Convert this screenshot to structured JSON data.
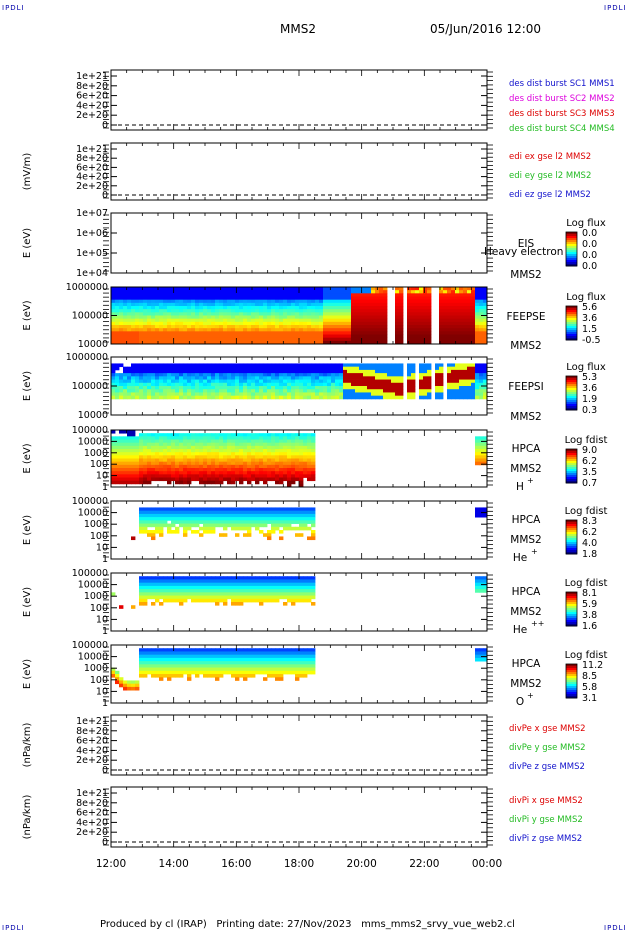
{
  "header": {
    "corner_labels": [
      "IPDLI",
      "IPDLI",
      "IPDLI",
      "IPDLI"
    ],
    "spacecraft": "MMS2",
    "datetime": "05/Jun/2016 12:00"
  },
  "footer": {
    "produced_by": "Produced by cl (IRAP)",
    "printing_date": "Printing date: 27/Nov/2023",
    "filename": "mms_mms2_srvy_vue_web2.cl"
  },
  "time_axis": {
    "ticks": [
      "12:00",
      "14:00",
      "16:00",
      "18:00",
      "20:00",
      "22:00",
      "00:00"
    ],
    "range_hours": [
      12,
      24
    ]
  },
  "colors": {
    "red": "#dd0000",
    "green": "#22bb22",
    "blue": "#1111cc",
    "magenta": "#dd00dd",
    "black": "#000000"
  },
  "chart_data": [
    {
      "type": "line",
      "id": "dist",
      "ylabel": "",
      "y_ticks": [
        "1e+21",
        "8e+20",
        "6e+20",
        "4e+20",
        "2e+20",
        "0"
      ],
      "legend": [
        {
          "text": "des dist burst SC1 MMS1",
          "color": "#1111cc"
        },
        {
          "text": "des dist burst SC2 MMS2",
          "color": "#dd00dd"
        },
        {
          "text": "des dist burst SC3 MMS3",
          "color": "#dd0000"
        },
        {
          "text": "des dist burst SC4 MMS4",
          "color": "#22bb22"
        }
      ]
    },
    {
      "type": "line",
      "id": "edi",
      "ylabel": "(mV/m)",
      "y_ticks": [
        "1e+21",
        "8e+20",
        "6e+20",
        "4e+20",
        "2e+20",
        "0"
      ],
      "legend": [
        {
          "text": "edi ex gse l2 MMS2",
          "color": "#dd0000"
        },
        {
          "text": "edi ey gse l2 MMS2",
          "color": "#22bb22"
        },
        {
          "text": "edi ez gse l2 MMS2",
          "color": "#1111cc"
        }
      ]
    },
    {
      "type": "heatmap",
      "id": "eis",
      "ylabel": "E (eV)",
      "y_ticks": [
        "1e+07",
        "1e+06",
        "1e+05",
        "1e+04"
      ],
      "instrument": "EIS",
      "spacecraft": "MMS2",
      "extra_text": "Heavy electron tc",
      "colorbar_title": "Log flux",
      "colorbar_ticks": [
        "0.0",
        "0.0",
        "0.0",
        "0.0"
      ]
    },
    {
      "type": "heatmap",
      "id": "feepse",
      "ylabel": "E (eV)",
      "y_ticks": [
        "1000000",
        "100000",
        "10000"
      ],
      "instrument": "FEEPSE",
      "spacecraft": "MMS2",
      "colorbar_title": "Log flux",
      "colorbar_ticks": [
        "5.6",
        "3.6",
        "1.5",
        "-0.5"
      ]
    },
    {
      "type": "heatmap",
      "id": "feepsi",
      "ylabel": "E (eV)",
      "y_ticks": [
        "1000000",
        "100000",
        "10000"
      ],
      "instrument": "FEEPSI",
      "spacecraft": "MMS2",
      "colorbar_title": "Log flux",
      "colorbar_ticks": [
        "5.3",
        "3.6",
        "1.9",
        "0.3"
      ]
    },
    {
      "type": "heatmap",
      "id": "hpca_h",
      "ylabel": "E (eV)",
      "y_ticks": [
        "100000",
        "10000",
        "1000",
        "100",
        "10",
        "1"
      ],
      "instrument": "HPCA",
      "spacecraft": "MMS2",
      "species": "H",
      "charge": "+",
      "colorbar_title": "Log fdist",
      "colorbar_ticks": [
        "9.0",
        "6.2",
        "3.5",
        "0.7"
      ]
    },
    {
      "type": "heatmap",
      "id": "hpca_he1",
      "ylabel": "E (eV)",
      "y_ticks": [
        "100000",
        "10000",
        "1000",
        "100",
        "10",
        "1"
      ],
      "instrument": "HPCA",
      "spacecraft": "MMS2",
      "species": "He",
      "charge": "+",
      "colorbar_title": "Log fdist",
      "colorbar_ticks": [
        "8.3",
        "6.2",
        "4.0",
        "1.8"
      ]
    },
    {
      "type": "heatmap",
      "id": "hpca_he2",
      "ylabel": "E (eV)",
      "y_ticks": [
        "100000",
        "10000",
        "1000",
        "100",
        "10",
        "1"
      ],
      "instrument": "HPCA",
      "spacecraft": "MMS2",
      "species": "He",
      "charge": "++",
      "colorbar_title": "Log fdist",
      "colorbar_ticks": [
        "8.1",
        "5.9",
        "3.8",
        "1.6"
      ]
    },
    {
      "type": "heatmap",
      "id": "hpca_o",
      "ylabel": "E (eV)",
      "y_ticks": [
        "100000",
        "10000",
        "1000",
        "100",
        "10",
        "1"
      ],
      "instrument": "HPCA",
      "spacecraft": "MMS2",
      "species": "O",
      "charge": "+",
      "colorbar_title": "Log fdist",
      "colorbar_ticks": [
        "11.2",
        "8.5",
        "5.8",
        "3.1"
      ]
    },
    {
      "type": "line",
      "id": "divpe",
      "ylabel": "(nPa/km)",
      "y_ticks": [
        "1e+21",
        "8e+20",
        "6e+20",
        "4e+20",
        "2e+20",
        "0"
      ],
      "legend": [
        {
          "text": "divPe x gse MMS2",
          "color": "#dd0000"
        },
        {
          "text": "divPe y gse MMS2",
          "color": "#22bb22"
        },
        {
          "text": "divPe z gse MMS2",
          "color": "#1111cc"
        }
      ]
    },
    {
      "type": "line",
      "id": "divpi",
      "ylabel": "(nPa/km)",
      "y_ticks": [
        "1e+21",
        "8e+20",
        "6e+20",
        "4e+20",
        "2e+20",
        "0"
      ],
      "legend": [
        {
          "text": "divPi x gse MMS2",
          "color": "#dd0000"
        },
        {
          "text": "divPi y gse MMS2",
          "color": "#22bb22"
        },
        {
          "text": "divPi z gse MMS2",
          "color": "#1111cc"
        }
      ]
    }
  ]
}
